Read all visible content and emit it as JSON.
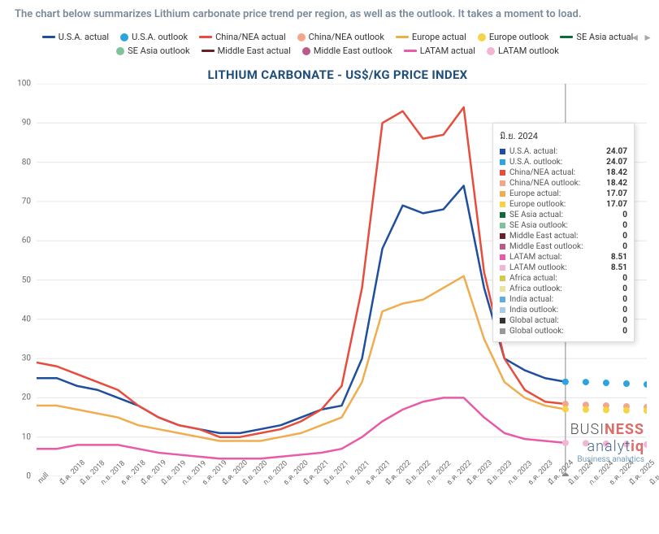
{
  "description": "The chart below summarizes Lithium carbonate price trend per region, as well as the outlook. It takes a moment to load.",
  "chart": {
    "title": "LITHIUM CARBONATE - US$/KG PRICE INDEX",
    "type": "line",
    "background_color": "#ffffff",
    "grid_color": "#e6e6e6",
    "title_color": "#1f4e79",
    "title_fontsize": 15,
    "ylim": [
      0,
      100
    ],
    "ytick_step": 10,
    "yticks": [
      0,
      10,
      20,
      30,
      40,
      50,
      60,
      70,
      80,
      90,
      100
    ],
    "hover_x_index": 26,
    "x_labels": [
      "null",
      "มี.ค. 2018",
      "มิ.ย. 2018",
      "ก.ย. 2018",
      "ธ.ค. 2018",
      "มี.ค. 2019",
      "มิ.ย. 2019",
      "ก.ย. 2019",
      "ธ.ค. 2019",
      "มี.ค. 2020",
      "มิ.ย. 2020",
      "ก.ย. 2020",
      "ธ.ค. 2020",
      "มี.ค. 2021",
      "มิ.ย. 2021",
      "ก.ย. 2021",
      "ธ.ค. 2021",
      "มี.ค. 2022",
      "มิ.ย. 2022",
      "ก.ย. 2022",
      "ธ.ค. 2022",
      "มี.ค. 2023",
      "มิ.ย. 2023",
      "ก.ย. 2023",
      "ธ.ค. 2023",
      "มี.ค. 2024",
      "มิ.ย. 2024",
      "ก.ย. 2024",
      "ธ.ค. 2024",
      "มี.ค. 2025",
      "มิ.ย. 2025"
    ],
    "series": [
      {
        "name": "U.S.A. actual",
        "color": "#1f4e9c",
        "width": 2.5,
        "style": "line",
        "data": [
          25,
          25,
          23,
          22,
          20,
          18,
          15,
          13,
          12,
          11,
          11,
          12,
          13,
          15,
          17,
          18,
          30,
          58,
          69,
          67,
          68,
          74,
          48,
          30,
          27,
          25,
          24.07,
          null,
          null,
          null,
          null
        ]
      },
      {
        "name": "U.S.A. outlook",
        "color": "#2ca4e0",
        "width": 2,
        "style": "dots",
        "data": [
          null,
          null,
          null,
          null,
          null,
          null,
          null,
          null,
          null,
          null,
          null,
          null,
          null,
          null,
          null,
          null,
          null,
          null,
          null,
          null,
          null,
          null,
          null,
          null,
          null,
          null,
          24.07,
          24,
          23.8,
          23.6,
          23.4
        ]
      },
      {
        "name": "China/NEA actual",
        "color": "#e74c3c",
        "width": 2.5,
        "style": "line",
        "data": [
          29,
          28,
          26,
          24,
          22,
          18,
          15,
          13,
          12,
          10,
          10,
          11,
          12,
          14,
          17,
          23,
          48,
          90,
          93,
          86,
          87,
          94,
          52,
          30,
          22,
          19,
          18.42,
          null,
          null,
          null,
          null
        ]
      },
      {
        "name": "China/NEA outlook",
        "color": "#f5a688",
        "width": 2,
        "style": "dots",
        "data": [
          null,
          null,
          null,
          null,
          null,
          null,
          null,
          null,
          null,
          null,
          null,
          null,
          null,
          null,
          null,
          null,
          null,
          null,
          null,
          null,
          null,
          null,
          null,
          null,
          null,
          null,
          18.42,
          18.2,
          18,
          17.8,
          17.6
        ]
      },
      {
        "name": "Europe actual",
        "color": "#f0ad4e",
        "width": 2.5,
        "style": "line",
        "data": [
          18,
          18,
          17,
          16,
          15,
          13,
          12,
          11,
          10,
          9,
          9,
          9,
          10,
          11,
          13,
          15,
          24,
          42,
          44,
          45,
          48,
          51,
          35,
          24,
          20,
          18,
          17.07,
          null,
          null,
          null,
          null
        ]
      },
      {
        "name": "Europe outlook",
        "color": "#f5d547",
        "width": 2,
        "style": "dots",
        "data": [
          null,
          null,
          null,
          null,
          null,
          null,
          null,
          null,
          null,
          null,
          null,
          null,
          null,
          null,
          null,
          null,
          null,
          null,
          null,
          null,
          null,
          null,
          null,
          null,
          null,
          null,
          17.07,
          17,
          16.9,
          16.8,
          16.7
        ]
      },
      {
        "name": "SE Asia actual",
        "color": "#0b6b3a",
        "width": 2.5,
        "style": "line",
        "data": []
      },
      {
        "name": "SE Asia outlook",
        "color": "#7cc29a",
        "width": 2,
        "style": "dots",
        "data": []
      },
      {
        "name": "Middle East actual",
        "color": "#6b1f2a",
        "width": 2.5,
        "style": "line",
        "data": []
      },
      {
        "name": "Middle East outlook",
        "color": "#b85a8a",
        "width": 2,
        "style": "dots",
        "data": []
      },
      {
        "name": "LATAM actual",
        "color": "#e75ba8",
        "width": 2.5,
        "style": "line",
        "data": [
          7,
          7,
          8,
          8,
          8,
          7,
          6,
          5.5,
          5,
          4.5,
          4.5,
          4.5,
          5,
          5.5,
          6,
          7,
          10,
          14,
          17,
          19,
          20,
          20,
          15,
          11,
          9.5,
          9,
          8.51,
          null,
          null,
          null,
          null
        ]
      },
      {
        "name": "LATAM outlook",
        "color": "#f2b6d4",
        "width": 2,
        "style": "dots",
        "data": [
          null,
          null,
          null,
          null,
          null,
          null,
          null,
          null,
          null,
          null,
          null,
          null,
          null,
          null,
          null,
          null,
          null,
          null,
          null,
          null,
          null,
          null,
          null,
          null,
          null,
          null,
          8.51,
          8.4,
          8.3,
          8.2,
          8.1
        ]
      }
    ],
    "legend_extra": [],
    "tooltip": {
      "title": "มิ.ย. 2024",
      "rows": [
        {
          "label": "U.S.A. actual",
          "value": "24.07",
          "color": "#1f4e9c"
        },
        {
          "label": "U.S.A. outlook",
          "value": "24.07",
          "color": "#2ca4e0"
        },
        {
          "label": "China/NEA actual",
          "value": "18.42",
          "color": "#e74c3c"
        },
        {
          "label": "China/NEA outlook",
          "value": "18.42",
          "color": "#f5a688"
        },
        {
          "label": "Europe actual",
          "value": "17.07",
          "color": "#f0ad4e"
        },
        {
          "label": "Europe outlook",
          "value": "17.07",
          "color": "#f5d547"
        },
        {
          "label": "SE Asia actual",
          "value": "0",
          "color": "#0b6b3a"
        },
        {
          "label": "SE Asia outlook",
          "value": "0",
          "color": "#7cc29a"
        },
        {
          "label": "Middle East actual",
          "value": "0",
          "color": "#6b1f2a"
        },
        {
          "label": "Middle East outlook",
          "value": "0",
          "color": "#b85a8a"
        },
        {
          "label": "LATAM actual",
          "value": "8.51",
          "color": "#e75ba8"
        },
        {
          "label": "LATAM outlook",
          "value": "8.51",
          "color": "#f2b6d4"
        },
        {
          "label": "Africa actual",
          "value": "0",
          "color": "#d4c94a"
        },
        {
          "label": "Africa outlook",
          "value": "0",
          "color": "#e8e3a0"
        },
        {
          "label": "India actual",
          "value": "0",
          "color": "#5dade2"
        },
        {
          "label": "India outlook",
          "value": "0",
          "color": "#a9cce3"
        },
        {
          "label": "Global actual",
          "value": "0",
          "color": "#333333"
        },
        {
          "label": "Global outlook",
          "value": "0",
          "color": "#999999"
        }
      ]
    }
  },
  "brand": {
    "line1a": "BUSI",
    "line1b": "NESS",
    "line2a": "analyt",
    "line2b": "iq",
    "sub": "Business analytics"
  },
  "nav": {
    "left": "◄",
    "right": "►"
  }
}
